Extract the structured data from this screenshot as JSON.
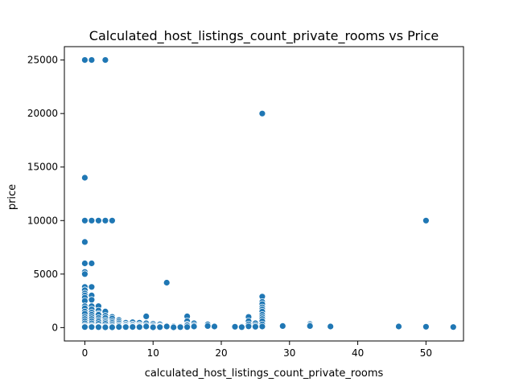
{
  "chart_data": {
    "type": "scatter",
    "title": "Calculated_host_listings_count_private_rooms vs Price",
    "xlabel": "calculated_host_listings_count_private_rooms",
    "ylabel": "price",
    "xlim": [
      -3,
      55.5
    ],
    "ylim": [
      -1250,
      26250
    ],
    "xticks": [
      0,
      10,
      20,
      30,
      40,
      50
    ],
    "yticks": [
      0,
      5000,
      10000,
      15000,
      20000,
      25000
    ],
    "grid": false,
    "legend": "none",
    "color": "#1f77b4",
    "points": [
      [
        0,
        25000
      ],
      [
        1,
        25000
      ],
      [
        3,
        25000
      ],
      [
        26,
        20000
      ],
      [
        0,
        14000
      ],
      [
        0,
        10000
      ],
      [
        1,
        10000
      ],
      [
        2,
        10000
      ],
      [
        3,
        10000
      ],
      [
        4,
        10000
      ],
      [
        50,
        10000
      ],
      [
        0,
        8000
      ],
      [
        0,
        6000
      ],
      [
        1,
        6000
      ],
      [
        0,
        5200
      ],
      [
        0,
        5000
      ],
      [
        12,
        4200
      ],
      [
        0,
        3800
      ],
      [
        1,
        3800
      ],
      [
        0,
        3500
      ],
      [
        0,
        3200
      ],
      [
        0,
        3000
      ],
      [
        1,
        3000
      ],
      [
        0,
        2800
      ],
      [
        0,
        2500
      ],
      [
        1,
        2600
      ],
      [
        26,
        2900
      ],
      [
        26,
        2400
      ],
      [
        26,
        2200
      ],
      [
        26,
        1900
      ],
      [
        26,
        1700
      ],
      [
        26,
        1500
      ],
      [
        0,
        2000
      ],
      [
        1,
        2000
      ],
      [
        2,
        2000
      ],
      [
        0,
        1800
      ],
      [
        1,
        1700
      ],
      [
        2,
        1600
      ],
      [
        3,
        1500
      ],
      [
        0,
        1500
      ],
      [
        1,
        1400
      ],
      [
        2,
        1300
      ],
      [
        0,
        1300
      ],
      [
        1,
        1200
      ],
      [
        2,
        1200
      ],
      [
        3,
        1100
      ],
      [
        4,
        1000
      ],
      [
        9,
        1050
      ],
      [
        15,
        1050
      ],
      [
        24,
        1000
      ],
      [
        26,
        1200
      ],
      [
        26,
        1000
      ],
      [
        26,
        800
      ],
      [
        0,
        1000
      ],
      [
        1,
        1000
      ],
      [
        2,
        900
      ],
      [
        3,
        900
      ],
      [
        4,
        850
      ],
      [
        5,
        700
      ],
      [
        0,
        800
      ],
      [
        1,
        800
      ],
      [
        2,
        700
      ],
      [
        3,
        650
      ],
      [
        4,
        600
      ],
      [
        5,
        550
      ],
      [
        6,
        450
      ],
      [
        7,
        500
      ],
      [
        8,
        450
      ],
      [
        9,
        400
      ],
      [
        10,
        350
      ],
      [
        11,
        300
      ],
      [
        15,
        600
      ],
      [
        16,
        400
      ],
      [
        18,
        300
      ],
      [
        24,
        600
      ],
      [
        25,
        400
      ],
      [
        26,
        600
      ],
      [
        0,
        600
      ],
      [
        1,
        600
      ],
      [
        2,
        550
      ],
      [
        3,
        500
      ],
      [
        4,
        450
      ],
      [
        5,
        400
      ],
      [
        6,
        300
      ],
      [
        7,
        300
      ],
      [
        8,
        250
      ],
      [
        0,
        400
      ],
      [
        1,
        400
      ],
      [
        2,
        350
      ],
      [
        3,
        350
      ],
      [
        4,
        300
      ],
      [
        5,
        250
      ],
      [
        6,
        200
      ],
      [
        7,
        200
      ],
      [
        8,
        200
      ],
      [
        9,
        200
      ],
      [
        10,
        200
      ],
      [
        11,
        150
      ],
      [
        12,
        150
      ],
      [
        13,
        100
      ],
      [
        14,
        100
      ],
      [
        15,
        300
      ],
      [
        16,
        200
      ],
      [
        0,
        200
      ],
      [
        1,
        200
      ],
      [
        2,
        150
      ],
      [
        3,
        150
      ],
      [
        4,
        150
      ],
      [
        5,
        150
      ],
      [
        6,
        100
      ],
      [
        7,
        100
      ],
      [
        8,
        100
      ],
      [
        9,
        100
      ],
      [
        10,
        100
      ],
      [
        11,
        100
      ],
      [
        12,
        100
      ],
      [
        15,
        200
      ],
      [
        16,
        100
      ],
      [
        18,
        150
      ],
      [
        19,
        100
      ],
      [
        22,
        50
      ],
      [
        23,
        100
      ],
      [
        24,
        300
      ],
      [
        25,
        200
      ],
      [
        26,
        300
      ],
      [
        26,
        100
      ],
      [
        29,
        150
      ],
      [
        33,
        350
      ],
      [
        33,
        250
      ],
      [
        33,
        150
      ],
      [
        36,
        100
      ],
      [
        46,
        100
      ],
      [
        50,
        80
      ],
      [
        54,
        50
      ],
      [
        0,
        100
      ],
      [
        1,
        100
      ],
      [
        2,
        80
      ],
      [
        3,
        60
      ],
      [
        4,
        50
      ],
      [
        5,
        60
      ],
      [
        6,
        50
      ],
      [
        7,
        60
      ],
      [
        8,
        50
      ],
      [
        0,
        50
      ],
      [
        1,
        50
      ],
      [
        2,
        40
      ],
      [
        3,
        30
      ],
      [
        4,
        30
      ],
      [
        15,
        50
      ],
      [
        14,
        40
      ],
      [
        13,
        30
      ],
      [
        11,
        40
      ],
      [
        10,
        30
      ],
      [
        24,
        120
      ],
      [
        22,
        80
      ],
      [
        23,
        40
      ],
      [
        25,
        80
      ]
    ]
  }
}
